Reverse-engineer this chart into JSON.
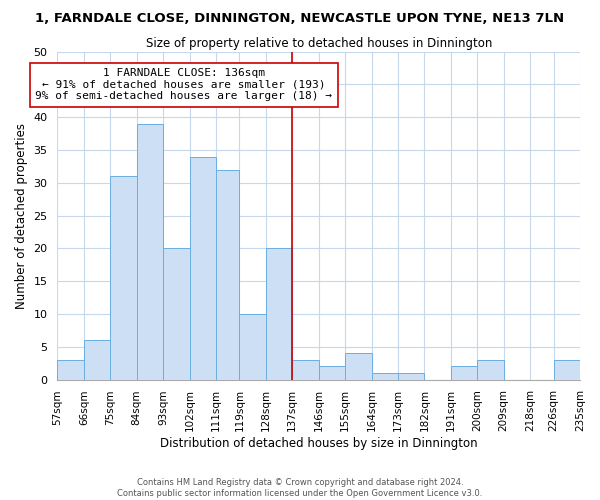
{
  "title": "1, FARNDALE CLOSE, DINNINGTON, NEWCASTLE UPON TYNE, NE13 7LN",
  "subtitle": "Size of property relative to detached houses in Dinnington",
  "xlabel": "Distribution of detached houses by size in Dinnington",
  "ylabel": "Number of detached properties",
  "bin_edges": [
    57,
    66,
    75,
    84,
    93,
    102,
    111,
    119,
    128,
    137,
    146,
    155,
    164,
    173,
    182,
    191,
    200,
    209,
    218,
    226,
    235
  ],
  "bar_heights": [
    3,
    6,
    31,
    39,
    20,
    34,
    32,
    10,
    20,
    3,
    2,
    4,
    1,
    1,
    0,
    2,
    3,
    0,
    0,
    3
  ],
  "bar_color": "#ccdff5",
  "bar_edgecolor": "#6aaee0",
  "vline_x": 137,
  "vline_color": "#cc0000",
  "annotation_text": "1 FARNDALE CLOSE: 136sqm\n← 91% of detached houses are smaller (193)\n9% of semi-detached houses are larger (18) →",
  "annotation_box_edgecolor": "#cc0000",
  "annotation_box_facecolor": "white",
  "ylim": [
    0,
    50
  ],
  "yticks": [
    0,
    5,
    10,
    15,
    20,
    25,
    30,
    35,
    40,
    45,
    50
  ],
  "tick_labels": [
    "57sqm",
    "66sqm",
    "75sqm",
    "84sqm",
    "93sqm",
    "102sqm",
    "111sqm",
    "119sqm",
    "128sqm",
    "137sqm",
    "146sqm",
    "155sqm",
    "164sqm",
    "173sqm",
    "182sqm",
    "191sqm",
    "200sqm",
    "209sqm",
    "218sqm",
    "226sqm",
    "235sqm"
  ],
  "footer": "Contains HM Land Registry data © Crown copyright and database right 2024.\nContains public sector information licensed under the Open Government Licence v3.0.",
  "bg_color": "#ffffff",
  "grid_color": "#c8d8ec"
}
